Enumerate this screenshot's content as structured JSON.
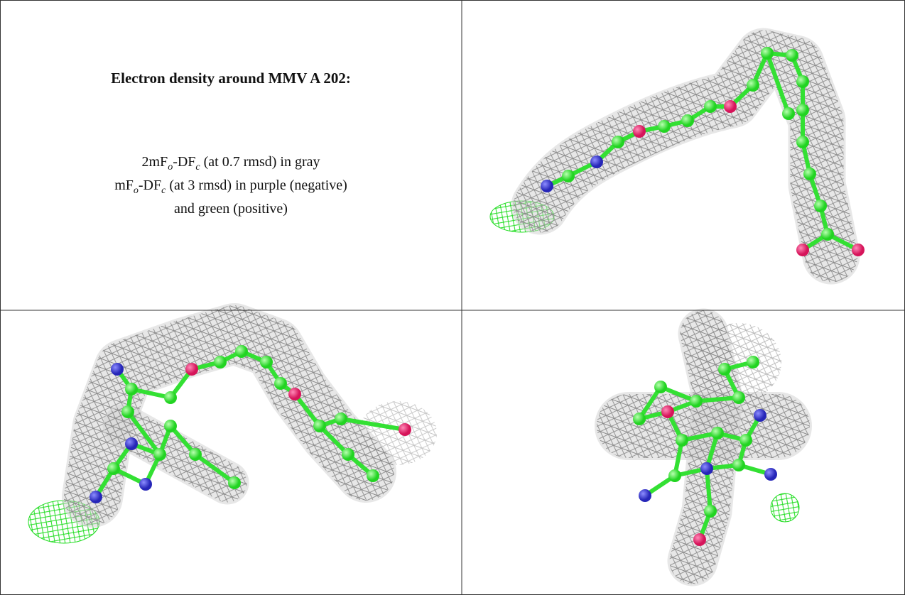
{
  "figure": {
    "title": "Electron density around MMV A 202:",
    "legend": [
      [
        {
          "text": "2mF"
        },
        {
          "text": "o",
          "sub": true
        },
        {
          "text": "-DF"
        },
        {
          "text": "c",
          "sub": true
        },
        {
          "text": " (at 0.7 rmsd) in gray"
        }
      ],
      [
        {
          "text": "mF"
        },
        {
          "text": "o",
          "sub": true
        },
        {
          "text": "-DF"
        },
        {
          "text": "c",
          "sub": true
        },
        {
          "text": " (at 3 rmsd) in purple (negative)"
        }
      ],
      [
        {
          "text": "and green (positive)"
        }
      ]
    ]
  }
}
